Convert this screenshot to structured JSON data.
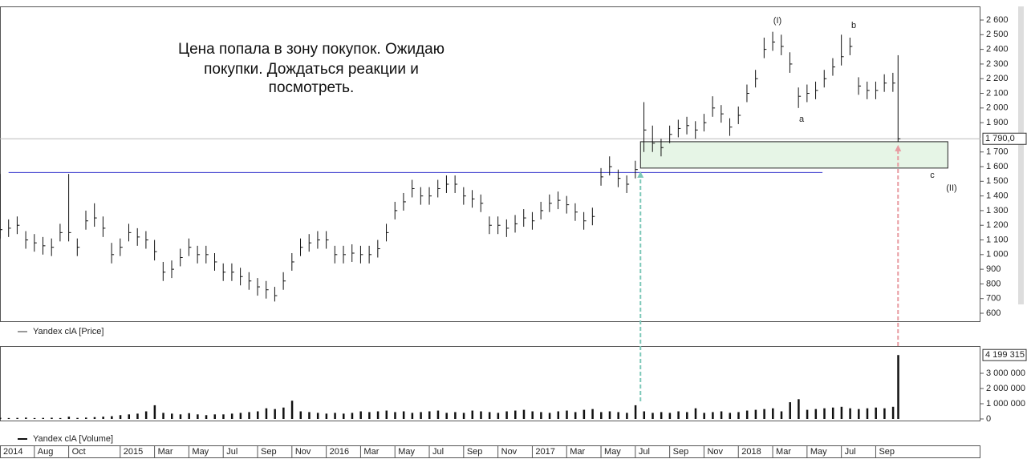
{
  "chart_data": [
    {
      "type": "ohlc",
      "legend": "Yandex clA [Price]",
      "annotation": [
        "Цена попала в зону покупок. Ожидаю",
        "покупки. Дождаться реакции и",
        "посмотреть."
      ],
      "wave_labels": [
        "(I)",
        "a",
        "b",
        "c",
        "(II)"
      ],
      "x": [
        5,
        5.5,
        6,
        6.5,
        7,
        7.5,
        8,
        8.5,
        9,
        9.5,
        10,
        10.5,
        11,
        11.5,
        12,
        12.5,
        13,
        13.5,
        14,
        14.5,
        15,
        15.5,
        16,
        16.5,
        17,
        17.5,
        18,
        18.5,
        19,
        19.5,
        20,
        20.5,
        21,
        21.5,
        22,
        22.5,
        23,
        23.5,
        24,
        24.5,
        25,
        25.5,
        26,
        26.5,
        27,
        27.5,
        28,
        28.5,
        29,
        29.5,
        30,
        30.5,
        31,
        31.5,
        32,
        32.5,
        33,
        33.5,
        34,
        34.5,
        35,
        35.5,
        36,
        36.5,
        37,
        37.5,
        38,
        38.5,
        39,
        39.5,
        40,
        40.5,
        41,
        41.5,
        42,
        42.5,
        43,
        43.5,
        44,
        44.5,
        45,
        45.5,
        46,
        46.5,
        47,
        47.5,
        48,
        48.5,
        49,
        49.5,
        50,
        50.5,
        51,
        51.5,
        52,
        52.5,
        53,
        53.5,
        54,
        54.5,
        55,
        55.5,
        56,
        56.5,
        57,
        57.3
      ],
      "high": [
        1550,
        1240,
        1260,
        1160,
        1140,
        1120,
        1110,
        1210,
        1550,
        1110,
        1300,
        1350,
        1260,
        1080,
        1110,
        1210,
        1180,
        1160,
        1100,
        950,
        960,
        1040,
        1110,
        1060,
        1060,
        1010,
        940,
        940,
        910,
        880,
        840,
        820,
        780,
        880,
        1010,
        1110,
        1140,
        1160,
        1160,
        1060,
        1060,
        1070,
        1060,
        1060,
        1100,
        1210,
        1360,
        1420,
        1510,
        1460,
        1460,
        1510,
        1540,
        1540,
        1460,
        1440,
        1410,
        1260,
        1260,
        1240,
        1270,
        1310,
        1290,
        1360,
        1410,
        1430,
        1400,
        1350,
        1290,
        1320,
        1590,
        1670,
        1580,
        1540,
        1640,
        2040,
        1880,
        1790,
        1880,
        1920,
        1940,
        1910,
        1960,
        2080,
        2020,
        1930,
        2010,
        2160,
        2260,
        2480,
        2520,
        2500,
        2380,
        2140,
        2160,
        2180,
        2260,
        2340,
        2500,
        2480,
        2210,
        2180,
        2180,
        2230,
        2240,
        2360
      ],
      "low": [
        1110,
        1120,
        1140,
        1040,
        1020,
        1000,
        990,
        1090,
        1090,
        990,
        1170,
        1190,
        1120,
        940,
        990,
        1090,
        1060,
        1040,
        960,
        820,
        840,
        920,
        990,
        940,
        940,
        890,
        820,
        820,
        790,
        760,
        720,
        700,
        680,
        760,
        890,
        990,
        1020,
        1040,
        1040,
        940,
        940,
        950,
        940,
        940,
        980,
        1090,
        1240,
        1300,
        1390,
        1340,
        1340,
        1390,
        1420,
        1420,
        1340,
        1320,
        1290,
        1140,
        1140,
        1120,
        1150,
        1190,
        1170,
        1240,
        1290,
        1310,
        1280,
        1230,
        1170,
        1200,
        1470,
        1540,
        1460,
        1420,
        1520,
        1700,
        1700,
        1670,
        1760,
        1800,
        1820,
        1790,
        1840,
        1940,
        1900,
        1810,
        1890,
        2040,
        2140,
        2340,
        2390,
        2360,
        2240,
        2000,
        2040,
        2060,
        2140,
        2220,
        2290,
        2360,
        2090,
        2060,
        2060,
        2110,
        2110,
        1770
      ],
      "close": [
        1170,
        1180,
        1200,
        1100,
        1080,
        1060,
        1050,
        1150,
        1150,
        1050,
        1230,
        1250,
        1180,
        1000,
        1050,
        1150,
        1120,
        1100,
        1020,
        880,
        900,
        980,
        1050,
        1000,
        1000,
        950,
        880,
        880,
        850,
        820,
        780,
        760,
        720,
        820,
        950,
        1050,
        1080,
        1100,
        1100,
        1000,
        1000,
        1010,
        1000,
        1000,
        1040,
        1150,
        1300,
        1360,
        1450,
        1400,
        1400,
        1450,
        1480,
        1480,
        1400,
        1380,
        1350,
        1200,
        1200,
        1180,
        1210,
        1250,
        1230,
        1300,
        1350,
        1370,
        1340,
        1290,
        1230,
        1260,
        1530,
        1600,
        1520,
        1480,
        1580,
        1850,
        1760,
        1730,
        1820,
        1860,
        1880,
        1850,
        1900,
        2000,
        1960,
        1870,
        1950,
        2100,
        2200,
        2400,
        2450,
        2420,
        2300,
        2080,
        2100,
        2120,
        2200,
        2280,
        2350,
        2420,
        2150,
        2120,
        2120,
        2170,
        2170,
        1790
      ],
      "color": "#111111",
      "current_price": {
        "value": 1790,
        "label": "1 790,0"
      },
      "level": {
        "value": 1560,
        "x": [
          5.5,
          52.9
        ],
        "color": "#3333cc"
      },
      "buy_zone": {
        "x": [
          42.3,
          60.2
        ],
        "y": [
          1590,
          1770
        ],
        "color": "#e6f5e6"
      },
      "xlim": [
        5,
        62.1
      ],
      "ylim": [
        540,
        2693
      ],
      "yticks": [
        {
          "value": 2600,
          "label": "2 600"
        },
        {
          "value": 2500,
          "label": "2 500"
        },
        {
          "value": 2400,
          "label": "2 400"
        },
        {
          "value": 2300,
          "label": "2 300"
        },
        {
          "value": 2200,
          "label": "2 200"
        },
        {
          "value": 2100,
          "label": "2 100"
        },
        {
          "value": 2000,
          "label": "2 000"
        },
        {
          "value": 1900,
          "label": "1 900"
        },
        {
          "value": 1700,
          "label": "1 700"
        },
        {
          "value": 1600,
          "label": "1 600"
        },
        {
          "value": 1500,
          "label": "1 500"
        },
        {
          "value": 1400,
          "label": "1 400"
        },
        {
          "value": 1300,
          "label": "1 300"
        },
        {
          "value": 1200,
          "label": "1 200"
        },
        {
          "value": 1100,
          "label": "1 100"
        },
        {
          "value": 1000,
          "label": "1 000"
        },
        900,
        800,
        700,
        600
      ]
    },
    {
      "type": "bar",
      "legend": "Yandex clA [Volume]",
      "x": [
        5,
        5.5,
        6,
        6.5,
        7,
        7.5,
        8,
        8.5,
        9,
        9.5,
        10,
        10.5,
        11,
        11.5,
        12,
        12.5,
        13,
        13.5,
        14,
        14.5,
        15,
        15.5,
        16,
        16.5,
        17,
        17.5,
        18,
        18.5,
        19,
        19.5,
        20,
        20.5,
        21,
        21.5,
        22,
        22.5,
        23,
        23.5,
        24,
        24.5,
        25,
        25.5,
        26,
        26.5,
        27,
        27.5,
        28,
        28.5,
        29,
        29.5,
        30,
        30.5,
        31,
        31.5,
        32,
        32.5,
        33,
        33.5,
        34,
        34.5,
        35,
        35.5,
        36,
        36.5,
        37,
        37.5,
        38,
        38.5,
        39,
        39.5,
        40,
        40.5,
        41,
        41.5,
        42,
        42.5,
        43,
        43.5,
        44,
        44.5,
        45,
        45.5,
        46,
        46.5,
        47,
        47.5,
        48,
        48.5,
        49,
        49.5,
        50,
        50.5,
        51,
        51.5,
        52,
        52.5,
        53,
        53.5,
        54,
        54.5,
        55,
        55.5,
        56,
        56.5,
        57,
        57.3
      ],
      "values": [
        80000,
        60000,
        70000,
        90000,
        60000,
        70000,
        80000,
        60000,
        150000,
        70000,
        90000,
        120000,
        150000,
        180000,
        250000,
        300000,
        350000,
        500000,
        900000,
        400000,
        350000,
        300000,
        380000,
        300000,
        250000,
        300000,
        300000,
        350000,
        400000,
        450000,
        500000,
        700000,
        650000,
        750000,
        1200000,
        500000,
        450000,
        400000,
        350000,
        400000,
        350000,
        400000,
        500000,
        450000,
        500000,
        550000,
        450000,
        500000,
        400000,
        450000,
        500000,
        550000,
        400000,
        450000,
        400000,
        550000,
        500000,
        450000,
        400000,
        500000,
        550000,
        600000,
        500000,
        450000,
        400000,
        500000,
        550000,
        450000,
        600000,
        650000,
        450000,
        500000,
        450000,
        400000,
        900000,
        500000,
        400000,
        450000,
        400000,
        500000,
        450000,
        700000,
        400000,
        450000,
        500000,
        400000,
        450000,
        550000,
        600000,
        650000,
        700000,
        500000,
        1100000,
        1300000,
        600000,
        650000,
        700000,
        750000,
        800000,
        700000,
        650000,
        700000,
        750000,
        700000,
        800000,
        4199315
      ],
      "color": "#111111",
      "last_value": {
        "value": 4199315,
        "label": "4 199 315"
      },
      "xlim": [
        5,
        62.1
      ],
      "ylim": [
        -105000,
        4790000
      ],
      "yticks": [
        {
          "value": 3000000,
          "label": "3 000 000"
        },
        {
          "value": 2000000,
          "label": "2 000 000"
        },
        {
          "value": 1000000,
          "label": "1 000 000"
        },
        0
      ],
      "xticks": [
        {
          "value": 5,
          "label": "2014"
        },
        {
          "value": 7,
          "label": "Aug"
        },
        {
          "value": 9,
          "label": "Oct"
        },
        {
          "value": 12,
          "label": "2015"
        },
        {
          "value": 14,
          "label": "Mar"
        },
        {
          "value": 16,
          "label": "May"
        },
        {
          "value": 18,
          "label": "Jul"
        },
        {
          "value": 20,
          "label": "Sep"
        },
        {
          "value": 22,
          "label": "Nov"
        },
        {
          "value": 24,
          "label": "2016"
        },
        {
          "value": 26,
          "label": "Mar"
        },
        {
          "value": 28,
          "label": "May"
        },
        {
          "value": 30,
          "label": "Jul"
        },
        {
          "value": 32,
          "label": "Sep"
        },
        {
          "value": 34,
          "label": "Nov"
        },
        {
          "value": 36,
          "label": "2017"
        },
        {
          "value": 38,
          "label": "Mar"
        },
        {
          "value": 40,
          "label": "May"
        },
        {
          "value": 42,
          "label": "Jul"
        },
        {
          "value": 44,
          "label": "Sep"
        },
        {
          "value": 46,
          "label": "Nov"
        },
        {
          "value": 48,
          "label": "2018"
        },
        {
          "value": 50,
          "label": "Mar"
        },
        {
          "value": 52,
          "label": "May"
        },
        {
          "value": 54,
          "label": "Jul"
        },
        {
          "value": 56,
          "label": "Sep"
        }
      ]
    }
  ]
}
